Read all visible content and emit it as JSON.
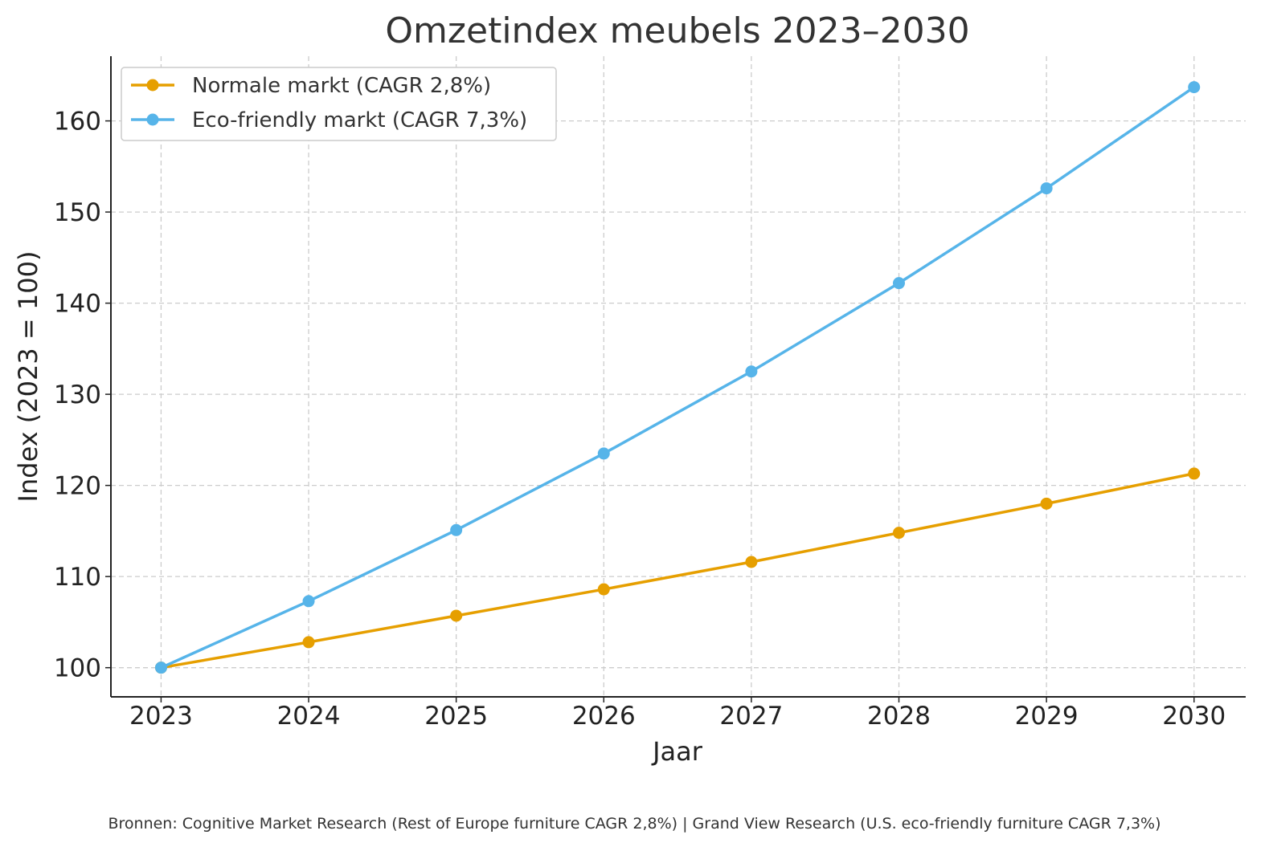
{
  "chart_data": {
    "type": "line",
    "title": "Omzetindex meubels 2023–2030",
    "xlabel": "Jaar",
    "ylabel": "Index (2023 = 100)",
    "x": [
      2023,
      2024,
      2025,
      2026,
      2027,
      2028,
      2029,
      2030
    ],
    "xticks": [
      "2023",
      "2024",
      "2025",
      "2026",
      "2027",
      "2028",
      "2029",
      "2030"
    ],
    "yticks": [
      100,
      110,
      120,
      130,
      140,
      150,
      160
    ],
    "xlim": [
      2022.66,
      2030.35
    ],
    "ylim": [
      96.8,
      167.1
    ],
    "grid": true,
    "legend_position": "top-left",
    "series": [
      {
        "name": "Normale markt (CAGR 2,8%)",
        "color": "#E69F00",
        "values": [
          100.0,
          102.8,
          105.7,
          108.6,
          111.6,
          114.8,
          118.0,
          121.3
        ]
      },
      {
        "name": "Eco-friendly markt (CAGR 7,3%)",
        "color": "#56B4E9",
        "values": [
          100.0,
          107.3,
          115.1,
          123.5,
          132.5,
          142.2,
          152.6,
          163.7
        ]
      }
    ],
    "source_note": "Bronnen: Cognitive Market Research (Rest of Europe furniture CAGR 2,8%) | Grand View Research (U.S. eco-friendly furniture CAGR 7,3%)"
  }
}
